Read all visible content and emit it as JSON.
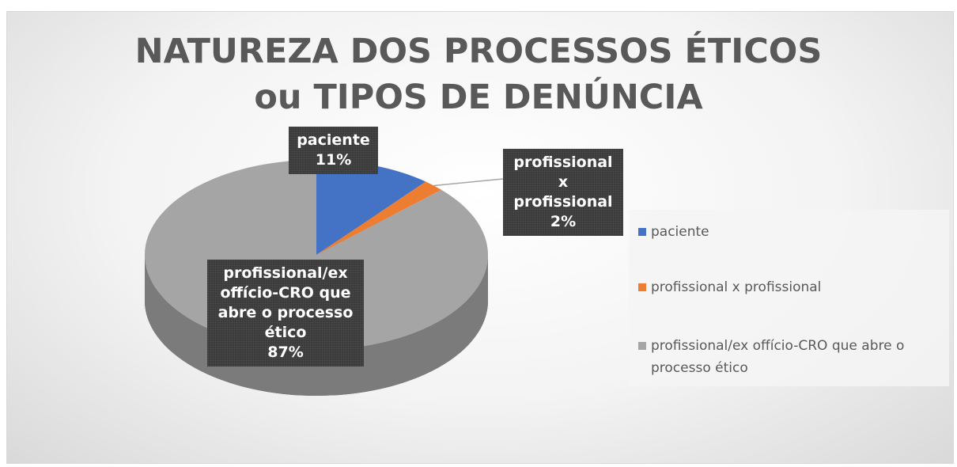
{
  "chart_data": {
    "type": "pie",
    "title": "NATUREZA DOS PROCESSOS ÉTICOS ou TIPOS DE DENÚNCIA",
    "categories": [
      "paciente",
      "profissional x profissional",
      "profissional/ex offício-CRO que abre o processo ético"
    ],
    "values": [
      11,
      2,
      87
    ],
    "value_labels": [
      "11%",
      "2%",
      "87%"
    ],
    "colors": [
      "#4472c4",
      "#ed7d31",
      "#a5a5a5"
    ],
    "legend": "right"
  }
}
